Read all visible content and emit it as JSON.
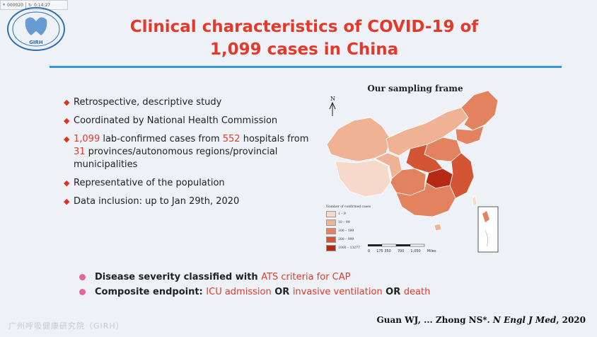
{
  "player": {
    "time_left": "000020",
    "time_right": "0:14:27"
  },
  "slide": {
    "title_line1": "Clinical characteristics of COVID-19 of",
    "title_line2": "1,099 cases in China",
    "bullets": [
      {
        "parts": [
          {
            "text": "Retrospective, descriptive study",
            "hl": false
          }
        ]
      },
      {
        "parts": [
          {
            "text": "Coordinated by National Health Commission",
            "hl": false
          }
        ]
      },
      {
        "parts": [
          {
            "text": "1,099",
            "hl": true
          },
          {
            "text": " lab-confirmed cases from ",
            "hl": false
          },
          {
            "text": "552",
            "hl": true
          },
          {
            "text": " hospitals from ",
            "hl": false
          },
          {
            "text": "31",
            "hl": true
          },
          {
            "text": " provinces/autonomous regions/provincial municipalities",
            "hl": false
          }
        ]
      },
      {
        "parts": [
          {
            "text": "Representative of the population",
            "hl": false
          }
        ]
      },
      {
        "parts": [
          {
            "text": "Data inclusion: up to Jan 29th, 2020",
            "hl": false
          }
        ]
      }
    ],
    "bottom_bullets": [
      {
        "parts": [
          {
            "text": "Disease severity classified with ",
            "hl": false
          },
          {
            "text": "ATS criteria for CAP",
            "hl": true
          }
        ]
      },
      {
        "parts": [
          {
            "text": "Composite endpoint: ",
            "hl": false
          },
          {
            "text": "ICU admission",
            "hl": true
          },
          {
            "text": " OR ",
            "hl": false
          },
          {
            "text": "invasive ventilation",
            "hl": true
          },
          {
            "text": " OR ",
            "hl": false
          },
          {
            "text": "death",
            "hl": true
          }
        ]
      }
    ],
    "citation_authors": "Guan WJ, ... Zhong NS*. ",
    "citation_journal": "N Engl J Med",
    "citation_year": ", 2020",
    "watermark": "广州呼吸健康研究院（GIRH）",
    "logo_text": "GIRH"
  },
  "map": {
    "title": "Our sampling frame",
    "north": "N",
    "legend_title": "Number of confirmed cases",
    "legend": [
      {
        "label": "1 – 9",
        "color": "#f7d9cc"
      },
      {
        "label": "10 – 99",
        "color": "#efb295"
      },
      {
        "label": "100 – 199",
        "color": "#e2825f"
      },
      {
        "label": "200 – 999",
        "color": "#d45533"
      },
      {
        "label": "1000 – 13277",
        "color": "#b52a12"
      }
    ],
    "scale_labels": [
      "0",
      "175 350",
      "700",
      "1,050"
    ],
    "scale_unit": "Miles"
  },
  "colors": {
    "title_red": "#e4392a",
    "rule_blue": "#3296d8",
    "bullet_mark": "#e0301e",
    "pink_dot": "#e8629e"
  }
}
